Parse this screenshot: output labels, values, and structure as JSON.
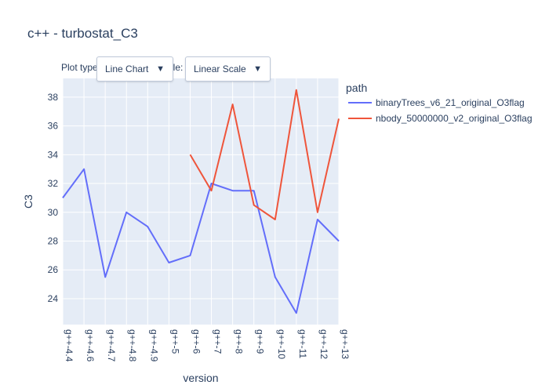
{
  "chart_data": {
    "type": "line",
    "title": "c++ - turbostat_C3",
    "xlabel": "version",
    "ylabel": "C3",
    "categories": [
      "g++-4.4",
      "g++-4.6",
      "g++-4.7",
      "g++-4.8",
      "g++-4.9",
      "g++-5",
      "g++-6",
      "g++-7",
      "g++-8",
      "g++-9",
      "g++-10",
      "g++-11",
      "g++-12",
      "g++-13"
    ],
    "yticks": [
      24,
      26,
      28,
      30,
      32,
      34,
      36,
      38
    ],
    "ylim": [
      22.2,
      39.3
    ],
    "grid": true,
    "legend_title": "path",
    "legend_position": "right",
    "series": [
      {
        "name": "binaryTrees_v6_21_original_O3flag",
        "color": "#636efa",
        "values": [
          31,
          33,
          25.5,
          30,
          29,
          26.5,
          27,
          32,
          31.5,
          31.5,
          25.5,
          23,
          29.5,
          28
        ]
      },
      {
        "name": "nbody_50000000_v2_original_O3flag",
        "color": "#ef553b",
        "values": [
          null,
          null,
          null,
          null,
          null,
          null,
          34,
          31.5,
          37.5,
          30.5,
          29.5,
          38.5,
          30,
          36.5
        ]
      }
    ]
  },
  "controls": {
    "plot_type_label": "Plot type:",
    "plot_type_value": "Line Chart",
    "scale_label": "Scale:",
    "scale_value": "Linear Scale",
    "caret": "▼"
  }
}
